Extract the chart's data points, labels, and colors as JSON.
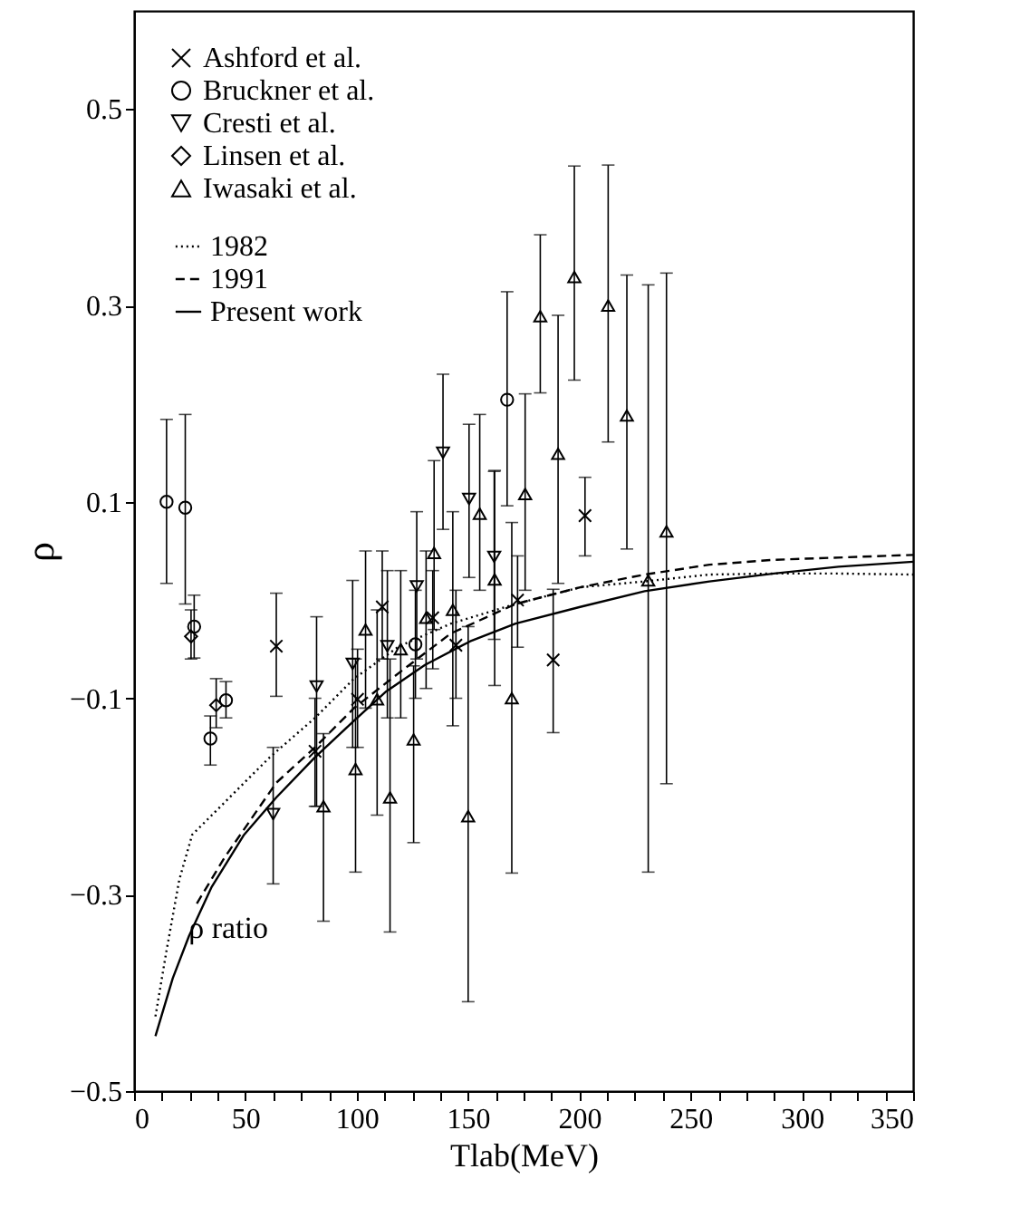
{
  "chart_data": {
    "type": "scatter",
    "xlabel": "Tlab(MeV)",
    "ylabel": "ρ",
    "xlim": [
      0,
      350
    ],
    "ylim": [
      -0.5,
      0.6
    ],
    "xticks": [
      0,
      {
        "value": 12.5,
        "label": null
      },
      {
        "value": 25,
        "label": null
      },
      {
        "value": 37.5,
        "label": null
      },
      50,
      {
        "value": 62.5,
        "label": null
      },
      {
        "value": 75,
        "label": null
      },
      {
        "value": 87.5,
        "label": null
      },
      100,
      {
        "value": 112.5,
        "label": null
      },
      {
        "value": 125,
        "label": null
      },
      {
        "value": 137.5,
        "label": null
      },
      150,
      {
        "value": 162.5,
        "label": null
      },
      {
        "value": 175,
        "label": null
      },
      {
        "value": 187.5,
        "label": null
      },
      200,
      {
        "value": 212.5,
        "label": null
      },
      {
        "value": 225,
        "label": null
      },
      {
        "value": 237.5,
        "label": null
      },
      250,
      {
        "value": 262.5,
        "label": null
      },
      {
        "value": 275,
        "label": null
      },
      {
        "value": 287.5,
        "label": null
      },
      300,
      {
        "value": 312.5,
        "label": null
      },
      {
        "value": 325,
        "label": null
      },
      {
        "value": 337.5,
        "label": null
      },
      350
    ],
    "yticks": [
      -0.5,
      -0.3,
      -0.1,
      0.1,
      0.3,
      0.5
    ],
    "grid": false,
    "legend": "top left",
    "annotations": [
      "ρ ratio"
    ],
    "series": [
      {
        "name": "Ashford et al.",
        "type": "scatter",
        "marker": "cross",
        "color": "#000000",
        "x": [
          63.9,
          81.3,
          100.4,
          111.5,
          134.2,
          144.6,
          172.3,
          188.3,
          202.6
        ],
        "values": [
          -0.047,
          -0.154,
          -0.101,
          -0.007,
          -0.018,
          -0.046,
          0.0,
          -0.061,
          0.086
        ],
        "errors": [
          [
            -0.098,
            0.007
          ],
          [
            -0.21,
            -0.1
          ],
          [
            -0.15,
            -0.05
          ],
          [
            -0.06,
            0.05
          ],
          [
            -0.07,
            0.03
          ],
          [
            -0.1,
            0.01
          ],
          [
            -0.048,
            0.045
          ],
          [
            -0.135,
            0.011
          ],
          [
            0.045,
            0.125
          ]
        ]
      },
      {
        "name": "Bruckner et al.",
        "type": "scatter",
        "marker": "circle",
        "color": "#000000",
        "x": [
          14.6,
          23,
          27,
          34.3,
          41.3,
          126.4,
          167.6
        ],
        "values": [
          0.1,
          0.094,
          -0.027,
          -0.141,
          -0.102,
          -0.045,
          0.204
        ],
        "errors": [
          [
            0.017,
            0.184
          ],
          [
            -0.004,
            0.189
          ],
          [
            -0.059,
            0.005
          ],
          [
            -0.168,
            -0.118
          ],
          [
            -0.12,
            -0.083
          ],
          [
            -0.1,
            0.01
          ],
          [
            0.096,
            0.314
          ]
        ]
      },
      {
        "name": "Cresti et al.",
        "type": "scatter",
        "marker": "triangle-down",
        "color": "#000000",
        "x": [
          62.5,
          82,
          98.2,
          113.8,
          127,
          138.8,
          150.5,
          161.8
        ],
        "values": [
          -0.218,
          -0.088,
          -0.065,
          -0.047,
          0.014,
          0.15,
          0.103,
          0.044
        ],
        "errors": [
          [
            -0.289,
            -0.15
          ],
          [
            -0.21,
            -0.017
          ],
          [
            -0.15,
            0.02
          ],
          [
            -0.12,
            0.03
          ],
          [
            -0.06,
            0.09
          ],
          [
            0.072,
            0.23
          ],
          [
            0.023,
            0.179
          ],
          [
            -0.04,
            0.131
          ]
        ]
      },
      {
        "name": "Linsen et al.",
        "type": "scatter",
        "marker": "diamond",
        "color": "#000000",
        "x": [
          25.6,
          36.9
        ],
        "values": [
          -0.037,
          -0.107
        ],
        "errors": [
          [
            -0.06,
            -0.01
          ],
          [
            -0.13,
            -0.08
          ]
        ]
      },
      {
        "name": "Iwasaki et al.",
        "type": "scatter",
        "marker": "triangle",
        "color": "#000000",
        "x": [
          85.1,
          99.5,
          104,
          109.2,
          115,
          119.8,
          125.6,
          131.2,
          134.8,
          143.2,
          150.1,
          155.3,
          162,
          169.7,
          175.7,
          182.5,
          190.5,
          197.8,
          213,
          221.4,
          231,
          239.2
        ],
        "values": [
          -0.21,
          -0.172,
          -0.03,
          -0.101,
          -0.201,
          -0.05,
          -0.142,
          -0.018,
          0.048,
          -0.01,
          -0.22,
          0.088,
          0.021,
          -0.1,
          0.108,
          0.289,
          0.149,
          0.329,
          0.3,
          0.188,
          0.02,
          0.07
        ],
        "errors": [
          [
            -0.327,
            -0.136
          ],
          [
            -0.277,
            -0.06
          ],
          [
            -0.11,
            0.05
          ],
          [
            -0.219,
            -0.01
          ],
          [
            -0.338,
            -0.06
          ],
          [
            -0.12,
            0.03
          ],
          [
            -0.247,
            -0.067
          ],
          [
            -0.09,
            0.05
          ],
          [
            -0.03,
            0.142
          ],
          [
            -0.128,
            0.09
          ],
          [
            -0.409,
            -0.027
          ],
          [
            0.01,
            0.189
          ],
          [
            -0.087,
            0.132
          ],
          [
            -0.278,
            0.079
          ],
          [
            0.01,
            0.21
          ],
          [
            0.211,
            0.372
          ],
          [
            0.017,
            0.29
          ],
          [
            0.224,
            0.442
          ],
          [
            0.161,
            0.443
          ],
          [
            0.052,
            0.331
          ],
          [
            -0.277,
            0.321
          ],
          [
            -0.187,
            0.333
          ]
        ]
      },
      {
        "name": "1982",
        "type": "line",
        "line_style": "dotted",
        "color": "#000000",
        "x": [
          9.6,
          14.5,
          20.3,
          26.1,
          40.7,
          61,
          81.3,
          98.8,
          119.1,
          142.3,
          171.4,
          200.4,
          229.4,
          258.5,
          287.5,
          316.5,
          350
        ],
        "values": [
          -0.424,
          -0.358,
          -0.285,
          -0.239,
          -0.206,
          -0.16,
          -0.12,
          -0.08,
          -0.047,
          -0.024,
          -0.004,
          0.013,
          0.019,
          0.026,
          0.027,
          0.027,
          0.026
        ]
      },
      {
        "name": "1991",
        "type": "line",
        "line_style": "dashed",
        "color": "#000000",
        "x": [
          28.2,
          40.7,
          63.9,
          81.3,
          98.8,
          119.1,
          142.3,
          171.4,
          200.4,
          229.4,
          258.5,
          287.5,
          350
        ],
        "values": [
          -0.309,
          -0.262,
          -0.186,
          -0.15,
          -0.11,
          -0.074,
          -0.034,
          -0.004,
          0.013,
          0.026,
          0.036,
          0.041,
          0.046
        ]
      },
      {
        "name": "Present work",
        "type": "line",
        "line_style": "solid",
        "color": "#000000",
        "x": [
          9.6,
          17.4,
          24.7,
          34.9,
          49.4,
          63.9,
          81.3,
          98.8,
          113.3,
          130.7,
          151,
          171.4,
          200.4,
          229.4,
          258.5,
          287.5,
          316.5,
          350
        ],
        "values": [
          -0.444,
          -0.385,
          -0.342,
          -0.292,
          -0.239,
          -0.201,
          -0.16,
          -0.123,
          -0.093,
          -0.066,
          -0.042,
          -0.024,
          -0.007,
          0.009,
          0.019,
          0.027,
          0.034,
          0.039
        ]
      }
    ]
  }
}
